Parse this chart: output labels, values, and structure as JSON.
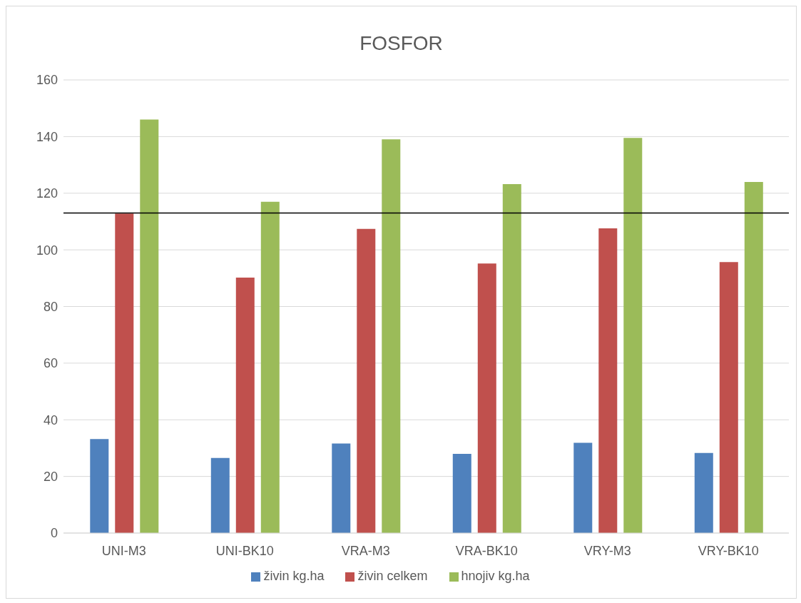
{
  "chart_data": {
    "type": "bar",
    "title": "FOSFOR",
    "categories": [
      "UNI-M3",
      "UNI-BK10",
      "VRA-M3",
      "VRA-BK10",
      "VRY-M3",
      "VRY-BK10"
    ],
    "series": [
      {
        "name": "živin kg.ha",
        "color": "#4f81bd",
        "values": [
          33.2,
          26.5,
          31.6,
          28.0,
          31.9,
          28.3
        ]
      },
      {
        "name": "živin celkem",
        "color": "#c0504d",
        "values": [
          112.8,
          90.2,
          107.4,
          95.2,
          107.6,
          95.7
        ]
      },
      {
        "name": "hnojiv kg.ha",
        "color": "#9bbb59",
        "values": [
          146.0,
          117.0,
          139.0,
          123.2,
          139.5,
          124.0
        ]
      }
    ],
    "ylim": [
      0,
      160
    ],
    "yticks": [
      0,
      20,
      40,
      60,
      80,
      100,
      120,
      140,
      160
    ],
    "grid": "y",
    "legend": "bottom",
    "ref_lines": [
      {
        "axis": "y",
        "value": 113,
        "color": "#000000"
      }
    ]
  }
}
